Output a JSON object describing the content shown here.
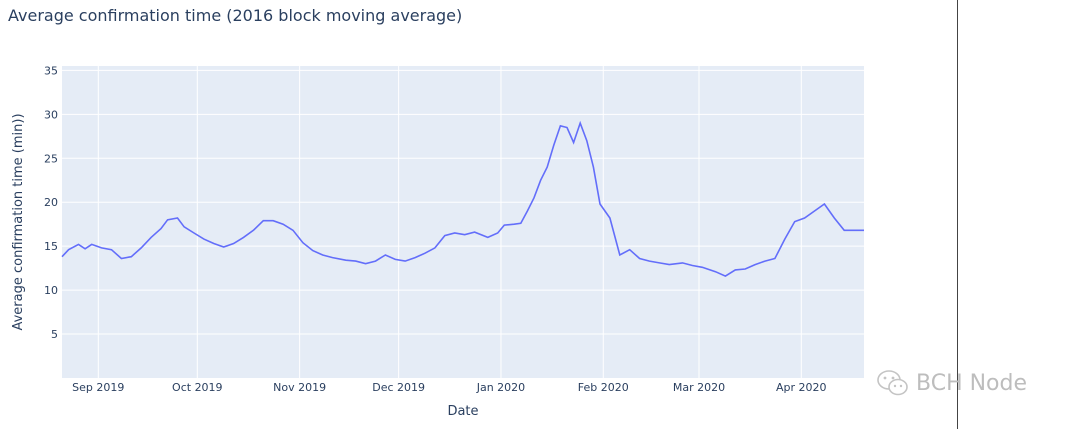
{
  "watermark": {
    "text": "BCH Node",
    "icon": "wechat-icon"
  },
  "colors": {
    "line": "#636efa",
    "plot_bg": "#e5ecf6",
    "grid": "#ffffff",
    "text": "#2a3f5f"
  },
  "chart_data": {
    "type": "line",
    "title": "Average confirmation time (2016 block moving average)",
    "xlabel": "Date",
    "ylabel": "Average confirmation time (min))",
    "x_range": [
      "2019-08-21",
      "2020-04-20"
    ],
    "ylim": [
      0,
      35.5
    ],
    "y_ticks": [
      5,
      10,
      15,
      20,
      25,
      30,
      35
    ],
    "x_ticks": [
      {
        "date": "2019-09-01",
        "label": "Sep 2019"
      },
      {
        "date": "2019-10-01",
        "label": "Oct 2019"
      },
      {
        "date": "2019-11-01",
        "label": "Nov 2019"
      },
      {
        "date": "2019-12-01",
        "label": "Dec 2019"
      },
      {
        "date": "2020-01-01",
        "label": "Jan 2020"
      },
      {
        "date": "2020-02-01",
        "label": "Feb 2020"
      },
      {
        "date": "2020-03-01",
        "label": "Mar 2020"
      },
      {
        "date": "2020-04-01",
        "label": "Apr 2020"
      }
    ],
    "grid": true,
    "series": [
      {
        "x": [
          "2019-08-21",
          "2019-08-23",
          "2019-08-26",
          "2019-08-28",
          "2019-08-30",
          "2019-09-02",
          "2019-09-05",
          "2019-09-08",
          "2019-09-11",
          "2019-09-14",
          "2019-09-17",
          "2019-09-20",
          "2019-09-22",
          "2019-09-25",
          "2019-09-27",
          "2019-09-30",
          "2019-10-03",
          "2019-10-06",
          "2019-10-09",
          "2019-10-12",
          "2019-10-15",
          "2019-10-18",
          "2019-10-21",
          "2019-10-24",
          "2019-10-27",
          "2019-10-30",
          "2019-11-02",
          "2019-11-05",
          "2019-11-08",
          "2019-11-11",
          "2019-11-15",
          "2019-11-18",
          "2019-11-21",
          "2019-11-24",
          "2019-11-27",
          "2019-11-30",
          "2019-12-03",
          "2019-12-06",
          "2019-12-09",
          "2019-12-12",
          "2019-12-15",
          "2019-12-18",
          "2019-12-21",
          "2019-12-24",
          "2019-12-28",
          "2019-12-31",
          "2020-01-02",
          "2020-01-05",
          "2020-01-07",
          "2020-01-09",
          "2020-01-11",
          "2020-01-13",
          "2020-01-15",
          "2020-01-17",
          "2020-01-19",
          "2020-01-21",
          "2020-01-23",
          "2020-01-25",
          "2020-01-27",
          "2020-01-29",
          "2020-01-31",
          "2020-02-03",
          "2020-02-06",
          "2020-02-09",
          "2020-02-12",
          "2020-02-15",
          "2020-02-18",
          "2020-02-21",
          "2020-02-25",
          "2020-02-28",
          "2020-03-02",
          "2020-03-06",
          "2020-03-09",
          "2020-03-12",
          "2020-03-15",
          "2020-03-18",
          "2020-03-21",
          "2020-03-24",
          "2020-03-27",
          "2020-03-30",
          "2020-04-02",
          "2020-04-05",
          "2020-04-08",
          "2020-04-11",
          "2020-04-14",
          "2020-04-17",
          "2020-04-20"
        ],
        "y": [
          13.8,
          14.6,
          15.2,
          14.7,
          15.2,
          14.8,
          14.6,
          13.6,
          13.8,
          14.8,
          16.0,
          17.0,
          18.0,
          18.2,
          17.2,
          16.5,
          15.8,
          15.3,
          14.9,
          15.3,
          16.0,
          16.8,
          17.9,
          17.9,
          17.5,
          16.8,
          15.4,
          14.5,
          14.0,
          13.7,
          13.4,
          13.3,
          13.0,
          13.3,
          14.0,
          13.5,
          13.3,
          13.7,
          14.2,
          14.8,
          16.2,
          16.5,
          16.3,
          16.6,
          16.0,
          16.5,
          17.4,
          17.5,
          17.6,
          19.0,
          20.5,
          22.5,
          24.0,
          26.5,
          28.7,
          28.5,
          26.8,
          29.0,
          27.0,
          24.0,
          19.8,
          18.2,
          14.0,
          14.6,
          13.6,
          13.3,
          13.1,
          12.9,
          13.1,
          12.8,
          12.6,
          12.1,
          11.6,
          12.3,
          12.4,
          12.9,
          13.3,
          13.6,
          15.8,
          17.8,
          18.2,
          19.0,
          19.8,
          18.2,
          16.8,
          16.8,
          16.8
        ]
      }
    ]
  }
}
